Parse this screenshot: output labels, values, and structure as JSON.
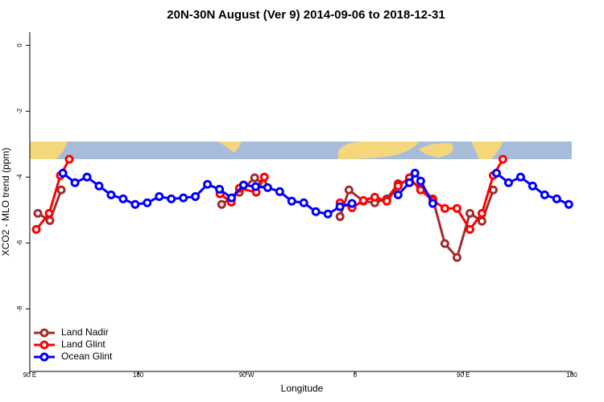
{
  "chart_data": {
    "type": "line",
    "title": "20N-30N August (Ver 9)   2014-09-06 to 2018-12-31",
    "x_label": "Longitude",
    "y_label": "XCO2 - MLO trend (ppm)",
    "xlim": [
      90,
      540
    ],
    "ylim": [
      -9.9,
      0.4
    ],
    "xticks": [
      {
        "value": 90,
        "label": "90 E"
      },
      {
        "value": 180,
        "label": "180"
      },
      {
        "value": 270,
        "label": "90 W"
      },
      {
        "value": 360,
        "label": "0"
      },
      {
        "value": 450,
        "label": "90 E"
      },
      {
        "value": 540,
        "label": "180"
      }
    ],
    "yticks": [
      0,
      -2,
      -4,
      -6,
      -8
    ],
    "legend": "bottom-left",
    "series": [
      {
        "name": "Land Nadir",
        "color": "#a52a2a",
        "x": [
          96.7,
          106.7,
          116.1,
          null,
          249.3,
          264,
          276.7,
          283.4,
          null,
          347.6,
          355,
          367,
          376.4,
          386.4,
          395.8,
          405.2,
          414.5,
          424.6,
          434.6,
          444.7,
          455.4,
          465.4,
          474.8
        ],
        "values": [
          -5.1,
          -5.32,
          -4.39,
          null,
          -4.83,
          -4.46,
          -4.02,
          -4.2,
          null,
          -5.2,
          -4.39,
          -4.73,
          -4.78,
          -4.66,
          -4.2,
          -4.1,
          -4.32,
          -4.66,
          -6.02,
          -6.44,
          -5.1,
          -5.34,
          -4.39
        ]
      },
      {
        "name": "Land Glint",
        "color": "#ff0000",
        "x": [
          95.4,
          106.1,
          115.4,
          122.8,
          null,
          247.9,
          257.3,
          264,
          278,
          284.7,
          null,
          347.6,
          357.6,
          367,
          376.4,
          386.4,
          395.8,
          405.2,
          414.5,
          424.6,
          434.6,
          444.7,
          455.4,
          465.4,
          474.8,
          482.8
        ],
        "values": [
          -5.59,
          -5.1,
          -3.95,
          -3.46,
          null,
          -4.51,
          -4.76,
          -4.34,
          -4.46,
          -4.0,
          null,
          -4.78,
          -4.93,
          -4.71,
          -4.61,
          -4.73,
          -4.27,
          -4.02,
          -4.39,
          -4.71,
          -4.95,
          -4.95,
          -5.59,
          -5.1,
          -3.95,
          -3.46
        ]
      },
      {
        "name": "Ocean Glint",
        "color": "#0000ff",
        "x": [
          117.5,
          127.5,
          137.5,
          147.5,
          157.5,
          167.5,
          177.5,
          187.5,
          197.5,
          207.5,
          217.5,
          227.5,
          237.5,
          247.5,
          257.5,
          267.5,
          277.5,
          287.5,
          297.5,
          307.5,
          317.5,
          327.5,
          337.5,
          347.5,
          357.5,
          null,
          395.8,
          405.2,
          409.8,
          414.5,
          424.6,
          null,
          477.5,
          487.5,
          497.5,
          507.5,
          517.5,
          527.5,
          537.5
        ],
        "values": [
          -3.88,
          -4.17,
          -4.0,
          -4.27,
          -4.54,
          -4.66,
          -4.83,
          -4.78,
          -4.59,
          -4.66,
          -4.63,
          -4.59,
          -4.22,
          -4.37,
          -4.63,
          -4.24,
          -4.29,
          -4.32,
          -4.44,
          -4.73,
          -4.78,
          -5.05,
          -5.12,
          -4.9,
          -4.8,
          null,
          -4.54,
          -4.17,
          -3.88,
          -4.12,
          -4.8,
          null,
          -3.88,
          -4.17,
          -4.0,
          -4.27,
          -4.54,
          -4.66,
          -4.83
        ]
      }
    ]
  }
}
